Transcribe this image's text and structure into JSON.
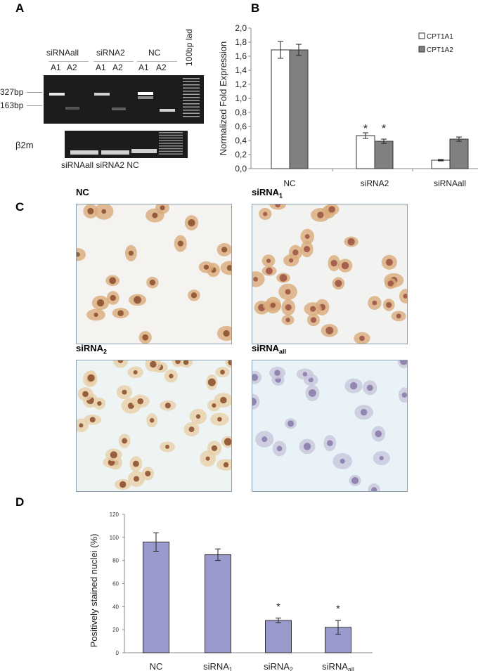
{
  "panels": {
    "a": "A",
    "b": "B",
    "c": "C",
    "d": "D"
  },
  "gel": {
    "groups": [
      "siRNAall",
      "siRNA2",
      "NC"
    ],
    "lanes": [
      "A1",
      "A2",
      "A1",
      "A2",
      "A1",
      "A2"
    ],
    "ladder": "100bp lad",
    "markers": [
      "327bp",
      "163bp"
    ],
    "b2m_label": "β2m",
    "b2m_lanes": "siRNAall siRNA2 NC"
  },
  "micrographs": [
    {
      "label": "NC",
      "sub": ""
    },
    {
      "label": "siRNA",
      "sub": "1"
    },
    {
      "label": "siRNA",
      "sub": "2"
    },
    {
      "label": "siRNA",
      "sub": "all"
    }
  ],
  "chart_data": [
    {
      "type": "bar",
      "ylabel": "Normalized Fold Expression",
      "categories": [
        "NC",
        "siRNA2",
        "siRNAall"
      ],
      "ylim": [
        0,
        2.0
      ],
      "yticks": [
        "0,0",
        "0,2",
        "0,4",
        "0,6",
        "0,8",
        "1,0",
        "1,2",
        "1,4",
        "1,6",
        "1,8",
        "2,0"
      ],
      "legend_position": "top-right",
      "series": [
        {
          "name": "CPT1A1",
          "values": [
            1.69,
            0.47,
            0.12
          ],
          "errors": [
            0.12,
            0.04,
            0.01
          ],
          "color": "#ffffff"
        },
        {
          "name": "CPT1A2",
          "values": [
            1.69,
            0.39,
            0.42
          ],
          "errors": [
            0.08,
            0.03,
            0.03
          ],
          "color": "#808080"
        }
      ],
      "annotations": [
        {
          "category": "siRNA2",
          "series": "CPT1A1",
          "text": "*"
        },
        {
          "category": "siRNA2",
          "series": "CPT1A2",
          "text": "*"
        }
      ]
    },
    {
      "type": "bar",
      "ylabel": "Positively stained nuclei (%)",
      "categories": [
        {
          "base": "NC",
          "sub": ""
        },
        {
          "base": "siRNA",
          "sub": "1"
        },
        {
          "base": "siRNA",
          "sub": "2"
        },
        {
          "base": "siRNA",
          "sub": "all"
        }
      ],
      "ylim": [
        0,
        120
      ],
      "yticks": [
        "0",
        "20",
        "40",
        "60",
        "80",
        "100",
        "120"
      ],
      "values": [
        96,
        85,
        28,
        22
      ],
      "errors": [
        8,
        5,
        2,
        6
      ],
      "color": "#9999cc",
      "annotations": [
        {
          "category": 2,
          "text": "*"
        },
        {
          "category": 3,
          "text": "*"
        }
      ]
    }
  ]
}
